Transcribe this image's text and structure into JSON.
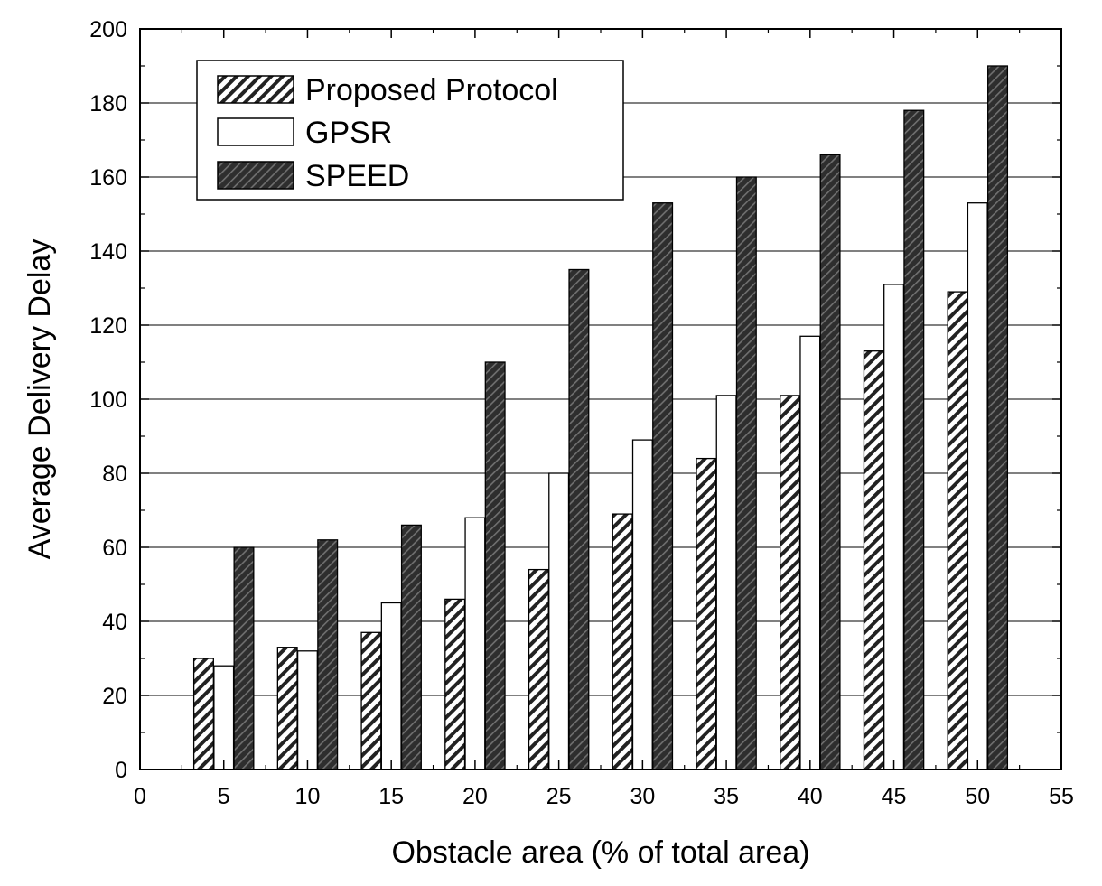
{
  "chart_data": {
    "type": "bar",
    "title": "",
    "xlabel": "Obstacle area (% of total area)",
    "ylabel": "Average Delivery Delay",
    "xlim": [
      0,
      55
    ],
    "ylim": [
      0,
      200
    ],
    "xticks": [
      0,
      5,
      10,
      15,
      20,
      25,
      30,
      35,
      40,
      45,
      50,
      55
    ],
    "yticks": [
      0,
      20,
      40,
      60,
      80,
      100,
      120,
      140,
      160,
      180,
      200
    ],
    "grid": "horizontal",
    "legend_position": "top-left",
    "x": [
      5,
      10,
      15,
      20,
      25,
      30,
      35,
      40,
      45,
      50
    ],
    "series": [
      {
        "name": "Proposed Protocol",
        "pattern": "hatched",
        "color": "#ffffff",
        "values": [
          30,
          33,
          37,
          46,
          54,
          69,
          84,
          101,
          113,
          129
        ]
      },
      {
        "name": "GPSR",
        "pattern": "solid",
        "color": "#ffffff",
        "values": [
          28,
          32,
          45,
          68,
          80,
          89,
          101,
          117,
          131,
          153
        ]
      },
      {
        "name": "SPEED",
        "pattern": "hatched",
        "color": "#2e2e2e",
        "values": [
          60,
          62,
          66,
          110,
          135,
          153,
          160,
          166,
          178,
          190
        ]
      }
    ]
  }
}
